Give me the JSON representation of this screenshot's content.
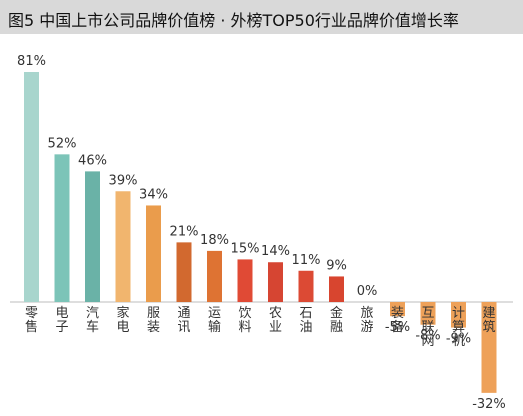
{
  "header": {
    "title": "图5 中国上市公司品牌价值榜 · 外榜TOP50行业品牌价值增长率"
  },
  "chart_data": {
    "type": "bar",
    "title": "图5 中国上市公司品牌价值榜 · 外榜TOP50行业品牌价值增长率",
    "categories": [
      "零售",
      "电子",
      "汽车",
      "家电",
      "服装",
      "通讯",
      "运输",
      "饮料",
      "农业",
      "石油",
      "金融",
      "旅游",
      "装备",
      "互联网",
      "计算机",
      "建筑"
    ],
    "values": [
      81,
      52,
      46,
      39,
      34,
      21,
      18,
      15,
      14,
      11,
      9,
      0,
      -5,
      -8,
      -9,
      -32
    ],
    "value_labels": [
      "81%",
      "52%",
      "46%",
      "39%",
      "34%",
      "21%",
      "18%",
      "15%",
      "14%",
      "11%",
      "9%",
      "0%",
      "-5%",
      "-8%",
      "-9%",
      "-32%"
    ],
    "bar_colors": [
      "#a8d5cd",
      "#7cc4b8",
      "#6ab2a7",
      "#f1b56e",
      "#ea9c4c",
      "#d2692f",
      "#de7333",
      "#e04a35",
      "#d64532",
      "#dc4a34",
      "#d8452f",
      "#e0e0e0",
      "#eea159",
      "#eea159",
      "#eea159",
      "#eea159"
    ],
    "ylim": [
      -32,
      81
    ],
    "grid": false,
    "legend": "none"
  }
}
